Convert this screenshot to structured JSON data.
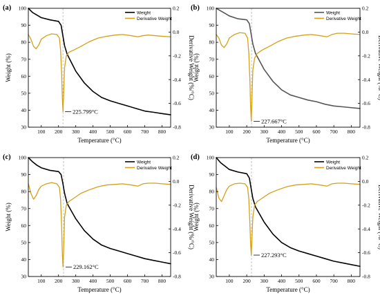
{
  "chart_data": [
    {
      "type": "line",
      "panel_label": "(a)",
      "xlabel": "Temperature (°C)",
      "ylabel": "Weight (%)",
      "ylabel_right": "Derivative Weight (%/°C)",
      "xlim": [
        25,
        850
      ],
      "ylim": [
        30,
        100
      ],
      "ylim_right": [
        -0.8,
        0.2
      ],
      "xticks": [
        100,
        200,
        300,
        400,
        500,
        600,
        700,
        800
      ],
      "yticks": [
        30,
        40,
        50,
        60,
        70,
        80,
        90,
        100
      ],
      "yticks_right": [
        -0.8,
        -0.6,
        -0.4,
        -0.2,
        0.0,
        0.2
      ],
      "legend_position": "top-right",
      "peak_annotation": {
        "x": 225.799,
        "y": -0.67,
        "label": "225.799°C"
      },
      "series": [
        {
          "name": "Weight",
          "axis": "left",
          "color": "#000000",
          "x": [
            25,
            50,
            75,
            100,
            150,
            200,
            215,
            225,
            235,
            250,
            300,
            350,
            400,
            450,
            500,
            550,
            600,
            650,
            700,
            750,
            800,
            850
          ],
          "y": [
            100,
            97.5,
            96,
            94.5,
            93.2,
            92.3,
            90,
            84,
            78,
            73,
            63,
            56,
            51,
            47.5,
            45.5,
            44,
            42.5,
            41,
            39.5,
            38.8,
            38,
            37.3
          ]
        },
        {
          "name": "Derivative Weight",
          "axis": "right",
          "color": "#d4a017",
          "x": [
            25,
            40,
            55,
            70,
            85,
            100,
            130,
            160,
            190,
            205,
            212,
            218,
            222,
            226,
            230,
            235,
            245,
            260,
            290,
            330,
            380,
            430,
            480,
            530,
            570,
            620,
            660,
            690,
            720,
            760,
            800,
            850
          ],
          "y": [
            -0.02,
            -0.06,
            -0.12,
            -0.14,
            -0.11,
            -0.06,
            -0.03,
            -0.015,
            -0.02,
            -0.05,
            -0.15,
            -0.35,
            -0.55,
            -0.67,
            -0.5,
            -0.3,
            -0.2,
            -0.17,
            -0.15,
            -0.12,
            -0.08,
            -0.05,
            -0.035,
            -0.025,
            -0.02,
            -0.03,
            -0.04,
            -0.03,
            -0.025,
            -0.03,
            -0.035,
            -0.04
          ]
        }
      ]
    },
    {
      "type": "line",
      "panel_label": "(b)",
      "xlabel": "Temperature (°C)",
      "ylabel": "Weight (%)",
      "ylabel_right": "Derivative Weight (%/°C)",
      "xlim": [
        25,
        850
      ],
      "ylim": [
        30,
        100
      ],
      "ylim_right": [
        -0.8,
        0.2
      ],
      "xticks": [
        100,
        200,
        300,
        400,
        500,
        600,
        700,
        800
      ],
      "yticks": [
        30,
        40,
        50,
        60,
        70,
        80,
        90,
        100
      ],
      "yticks_right": [
        -0.8,
        -0.6,
        -0.4,
        -0.2,
        0.0,
        0.2
      ],
      "legend_position": "top-right",
      "peak_annotation": {
        "x": 227.667,
        "y": -0.75,
        "label": "227.667°C"
      },
      "series": [
        {
          "name": "Weight",
          "axis": "left",
          "color": "#555555",
          "x": [
            25,
            50,
            75,
            100,
            150,
            200,
            215,
            225,
            235,
            250,
            300,
            350,
            400,
            450,
            500,
            550,
            600,
            650,
            700,
            750,
            800,
            850
          ],
          "y": [
            100,
            98.5,
            97,
            95.5,
            93.8,
            93.2,
            91,
            85,
            79,
            73.5,
            64,
            57,
            52,
            49,
            47.5,
            46,
            45,
            43.5,
            42.5,
            42,
            41.5,
            41
          ]
        },
        {
          "name": "Derivative Weight",
          "axis": "right",
          "color": "#d4a017",
          "x": [
            25,
            40,
            55,
            70,
            85,
            100,
            130,
            160,
            190,
            205,
            212,
            218,
            222,
            226,
            230,
            235,
            245,
            260,
            290,
            330,
            380,
            430,
            480,
            530,
            570,
            620,
            660,
            690,
            720,
            760,
            800,
            850
          ],
          "y": [
            -0.02,
            -0.05,
            -0.11,
            -0.13,
            -0.1,
            -0.05,
            -0.02,
            -0.005,
            -0.01,
            -0.05,
            -0.18,
            -0.4,
            -0.62,
            -0.75,
            -0.55,
            -0.32,
            -0.22,
            -0.18,
            -0.15,
            -0.12,
            -0.08,
            -0.05,
            -0.035,
            -0.025,
            -0.02,
            -0.03,
            -0.04,
            -0.02,
            -0.01,
            -0.01,
            -0.015,
            -0.02
          ]
        }
      ]
    },
    {
      "type": "line",
      "panel_label": "(c)",
      "xlabel": "Temperature (°C)",
      "ylabel": "Weight (%)",
      "ylabel_right": "Derivative Weight (%/°C)",
      "xlim": [
        25,
        850
      ],
      "ylim": [
        30,
        100
      ],
      "ylim_right": [
        -0.8,
        0.2
      ],
      "xticks": [
        100,
        200,
        300,
        400,
        500,
        600,
        700,
        800
      ],
      "yticks": [
        30,
        40,
        50,
        60,
        70,
        80,
        90,
        100
      ],
      "yticks_right": [
        -0.8,
        -0.6,
        -0.4,
        -0.2,
        0.0,
        0.2
      ],
      "legend_position": "top-right",
      "peak_annotation": {
        "x": 229.162,
        "y": -0.72,
        "label": "229.162°C"
      },
      "series": [
        {
          "name": "Weight",
          "axis": "left",
          "color": "#000000",
          "x": [
            25,
            50,
            75,
            100,
            150,
            200,
            215,
            225,
            235,
            250,
            300,
            350,
            400,
            450,
            500,
            550,
            600,
            650,
            700,
            750,
            800,
            850
          ],
          "y": [
            100,
            97.5,
            95.5,
            94,
            92.5,
            91.8,
            90,
            85,
            79,
            73,
            64,
            57,
            52,
            48.5,
            46.5,
            45,
            43.5,
            42,
            40.5,
            39.5,
            38.5,
            37.5
          ]
        },
        {
          "name": "Derivative Weight",
          "axis": "right",
          "color": "#d4a017",
          "x": [
            25,
            40,
            55,
            70,
            85,
            100,
            130,
            160,
            190,
            205,
            212,
            218,
            222,
            226,
            230,
            235,
            245,
            260,
            290,
            330,
            380,
            430,
            480,
            530,
            570,
            620,
            660,
            690,
            720,
            760,
            800,
            850
          ],
          "y": [
            -0.02,
            -0.1,
            -0.15,
            -0.12,
            -0.07,
            -0.04,
            -0.02,
            -0.01,
            -0.02,
            -0.05,
            -0.15,
            -0.38,
            -0.6,
            -0.72,
            -0.55,
            -0.3,
            -0.2,
            -0.17,
            -0.14,
            -0.1,
            -0.07,
            -0.045,
            -0.03,
            -0.025,
            -0.02,
            -0.03,
            -0.04,
            -0.02,
            -0.015,
            -0.015,
            -0.02,
            -0.025
          ]
        }
      ]
    },
    {
      "type": "line",
      "panel_label": "(d)",
      "xlabel": "Temperature (°C)",
      "ylabel": "Weight (%)",
      "ylabel_right": "Derivative Weight (%/°C)",
      "xlim": [
        25,
        850
      ],
      "ylim": [
        30,
        100
      ],
      "ylim_right": [
        -0.8,
        0.2
      ],
      "xticks": [
        100,
        200,
        300,
        400,
        500,
        600,
        700,
        800
      ],
      "yticks": [
        30,
        40,
        50,
        60,
        70,
        80,
        90,
        100
      ],
      "yticks_right": [
        -0.8,
        -0.6,
        -0.4,
        -0.2,
        0.0,
        0.2
      ],
      "legend_position": "top-right",
      "peak_annotation": {
        "x": 227.293,
        "y": -0.62,
        "label": "227.293°C"
      },
      "series": [
        {
          "name": "Weight",
          "axis": "left",
          "color": "#000000",
          "x": [
            25,
            50,
            75,
            100,
            150,
            200,
            215,
            225,
            235,
            250,
            300,
            350,
            400,
            450,
            500,
            550,
            600,
            650,
            700,
            750,
            800,
            850
          ],
          "y": [
            100,
            97,
            95,
            93,
            91.5,
            90.5,
            88,
            82,
            76,
            71,
            62,
            55,
            50,
            47,
            45,
            43.5,
            42,
            40.5,
            39,
            38,
            37,
            36
          ]
        },
        {
          "name": "Derivative Weight",
          "axis": "right",
          "color": "#d4a017",
          "x": [
            25,
            40,
            55,
            70,
            85,
            100,
            130,
            160,
            190,
            205,
            212,
            218,
            222,
            226,
            230,
            235,
            245,
            260,
            290,
            330,
            380,
            430,
            480,
            530,
            570,
            620,
            660,
            690,
            720,
            760,
            800,
            850
          ],
          "y": [
            -0.05,
            -0.14,
            -0.17,
            -0.12,
            -0.07,
            -0.04,
            -0.02,
            -0.015,
            -0.02,
            -0.05,
            -0.15,
            -0.35,
            -0.52,
            -0.62,
            -0.48,
            -0.3,
            -0.2,
            -0.17,
            -0.14,
            -0.1,
            -0.07,
            -0.045,
            -0.03,
            -0.025,
            -0.02,
            -0.03,
            -0.04,
            -0.02,
            -0.015,
            -0.015,
            -0.02,
            -0.025
          ]
        }
      ]
    }
  ]
}
